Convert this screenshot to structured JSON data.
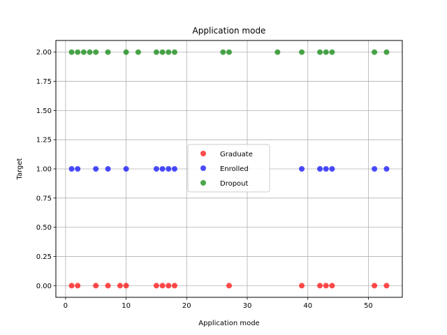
{
  "chart_data": {
    "type": "scatter",
    "title": "Application mode",
    "xlabel": "Application mode",
    "ylabel": "Target",
    "xlim": [
      -1.6,
      55.6
    ],
    "ylim": [
      -0.1,
      2.1
    ],
    "xticks": [
      0,
      10,
      20,
      30,
      40,
      50
    ],
    "xtick_labels": [
      "0",
      "10",
      "20",
      "30",
      "40",
      "50"
    ],
    "yticks": [
      0,
      0.25,
      0.5,
      0.75,
      1,
      1.25,
      1.5,
      1.75,
      2
    ],
    "ytick_labels": [
      "0.00",
      "0.25",
      "0.50",
      "0.75",
      "1.00",
      "1.25",
      "1.50",
      "1.75",
      "2.00"
    ],
    "grid": true,
    "legend_position": "center",
    "series": [
      {
        "name": "Graduate",
        "color": "#ff0000",
        "points": [
          [
            1,
            0
          ],
          [
            2,
            0
          ],
          [
            5,
            0
          ],
          [
            7,
            0
          ],
          [
            9,
            0
          ],
          [
            10,
            0
          ],
          [
            15,
            0
          ],
          [
            16,
            0
          ],
          [
            17,
            0
          ],
          [
            18,
            0
          ],
          [
            27,
            0
          ],
          [
            39,
            0
          ],
          [
            42,
            0
          ],
          [
            43,
            0
          ],
          [
            44,
            0
          ],
          [
            51,
            0
          ],
          [
            53,
            0
          ]
        ]
      },
      {
        "name": "Enrolled",
        "color": "#0000ff",
        "points": [
          [
            1,
            1
          ],
          [
            2,
            1
          ],
          [
            5,
            1
          ],
          [
            7,
            1
          ],
          [
            10,
            1
          ],
          [
            15,
            1
          ],
          [
            16,
            1
          ],
          [
            17,
            1
          ],
          [
            18,
            1
          ],
          [
            39,
            1
          ],
          [
            42,
            1
          ],
          [
            43,
            1
          ],
          [
            44,
            1
          ],
          [
            51,
            1
          ],
          [
            53,
            1
          ]
        ]
      },
      {
        "name": "Dropout",
        "color": "#008000",
        "points": [
          [
            1,
            2
          ],
          [
            2,
            2
          ],
          [
            3,
            2
          ],
          [
            4,
            2
          ],
          [
            5,
            2
          ],
          [
            7,
            2
          ],
          [
            10,
            2
          ],
          [
            12,
            2
          ],
          [
            15,
            2
          ],
          [
            16,
            2
          ],
          [
            17,
            2
          ],
          [
            18,
            2
          ],
          [
            26,
            2
          ],
          [
            27,
            2
          ],
          [
            35,
            2
          ],
          [
            39,
            2
          ],
          [
            42,
            2
          ],
          [
            43,
            2
          ],
          [
            44,
            2
          ],
          [
            51,
            2
          ],
          [
            53,
            2
          ]
        ]
      }
    ]
  }
}
